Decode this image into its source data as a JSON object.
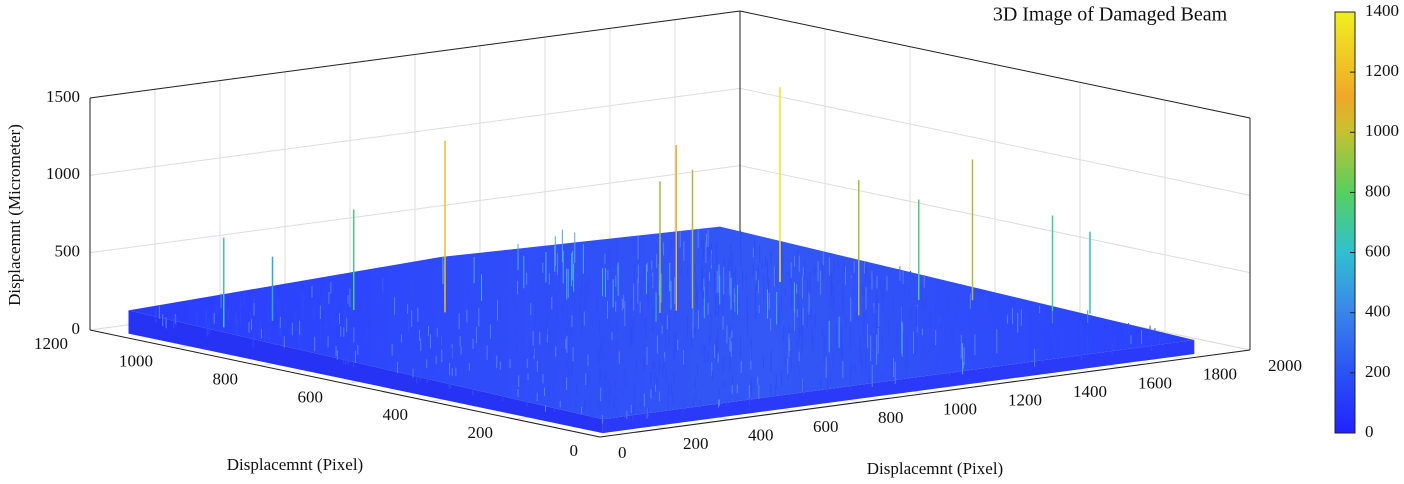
{
  "chart_data": {
    "type": "surface3d",
    "title": "3D Image of Damaged Beam",
    "x_label": "Displacemnt (Pixel)",
    "y_label": "Displacemnt (Pixel)",
    "z_label": "Displacemnt (Micrometer)",
    "xlim": [
      0,
      2000
    ],
    "xticks": [
      0,
      200,
      400,
      600,
      800,
      1000,
      1200,
      1400,
      1600,
      1800,
      2000
    ],
    "ylim": [
      0,
      1200
    ],
    "yticks": [
      0,
      200,
      400,
      600,
      800,
      1000,
      1200
    ],
    "zlim": [
      0,
      1500
    ],
    "zticks": [
      0,
      500,
      1000,
      1500
    ],
    "clim": [
      0,
      1400
    ],
    "cticks": [
      0,
      200,
      400,
      600,
      800,
      1000,
      1200,
      1400
    ],
    "grid": true,
    "spikes": {
      "x": [
        700,
        150,
        550,
        1600,
        1800,
        1200,
        1150,
        1900,
        1850,
        1100,
        1450,
        300,
        1700
      ],
      "y": [
        900,
        1000,
        1000,
        800,
        500,
        700,
        700,
        300,
        350,
        700,
        500,
        1000,
        550
      ],
      "z": [
        1200,
        670,
        740,
        1350,
        1000,
        987,
        1160,
        620,
        710,
        940,
        965,
        505,
        740
      ]
    }
  }
}
